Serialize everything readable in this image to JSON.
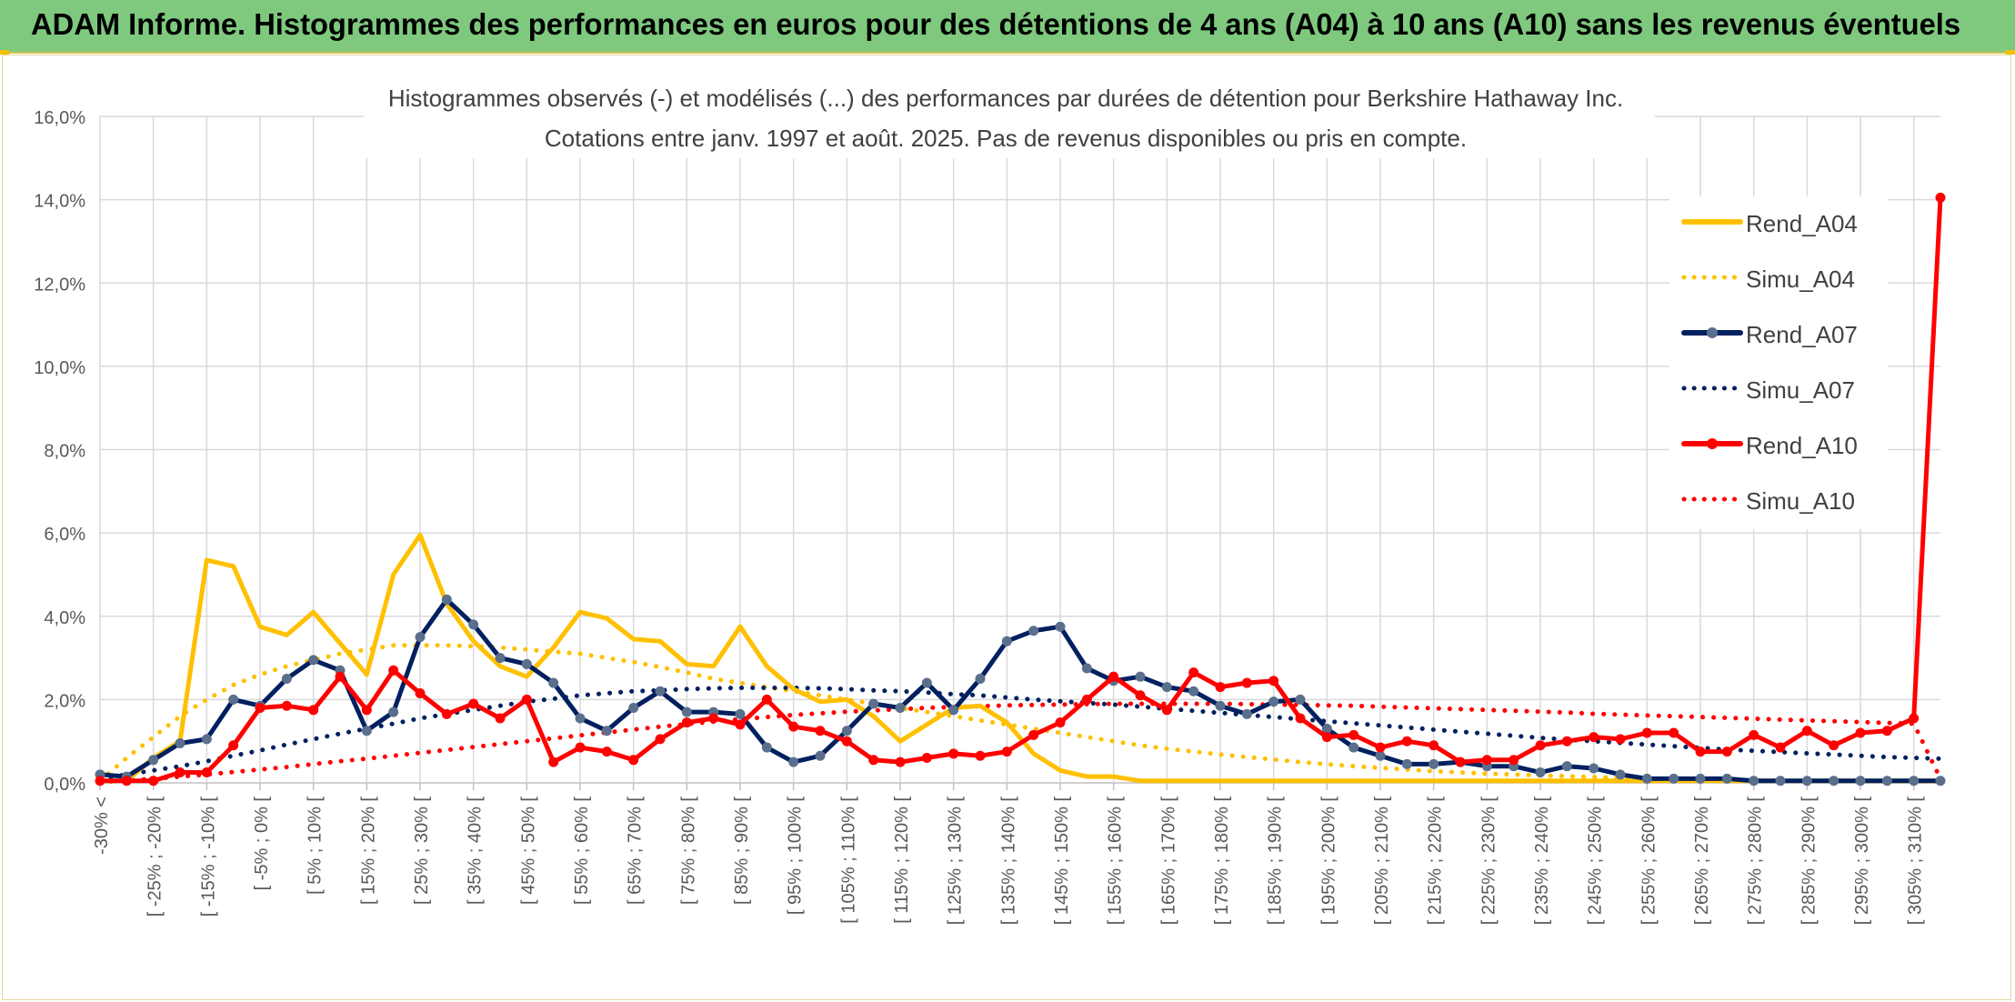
{
  "banner": {
    "title": "ADAM Informe. Histogrammes des performances en euros pour des détentions de 4 ans (A04) à 10 ans (A10) sans les revenus éventuels"
  },
  "colors": {
    "banner_bg": "#7ec97e",
    "A04": "#FFC000",
    "A07": "#002060",
    "A07_marker": "#5a6f8c",
    "A10": "#FF0000"
  },
  "chart_data": {
    "type": "line",
    "title": "Histogrammes observés (-) et modélisés (...) des performances par durées de détention pour Berkshire Hathaway Inc.",
    "subtitle": "Cotations entre janv. 1997 et août. 2025. Pas de revenus disponibles ou pris en compte.",
    "ylim": [
      0,
      16
    ],
    "yticks": [
      "0,0%",
      "2,0%",
      "4,0%",
      "6,0%",
      "8,0%",
      "10,0%",
      "12,0%",
      "14,0%",
      "16,0%"
    ],
    "x_labels": [
      "-30% <",
      "",
      "[ -25% ; -20% [",
      "",
      "[ -15% ; -10% [",
      "",
      "[ -5% ; 0% [",
      "",
      "[ 5% ; 10% [",
      "",
      "[ 15% ; 20% [",
      "",
      "[ 25% ; 30% [",
      "",
      "[ 35% ; 40% [",
      "",
      "[ 45% ; 50% [",
      "",
      "[ 55% ; 60% [",
      "",
      "[ 65% ; 70% [",
      "",
      "[ 75% ; 80% [",
      "",
      "[ 85% ; 90% [",
      "",
      "[ 95% ; 100% [",
      "",
      "[ 105% ; 110% [",
      "",
      "[ 115% ; 120% [",
      "",
      "[ 125% ; 130% [",
      "",
      "[ 135% ; 140% [",
      "",
      "[ 145% ; 150% [",
      "",
      "[ 155% ; 160% [",
      "",
      "[ 165% ; 170% [",
      "",
      "[ 175% ; 180% [",
      "",
      "[ 185% ; 190% [",
      "",
      "[ 195% ; 200% [",
      "",
      "[ 205% ; 210% [",
      "",
      "[ 215% ; 220% [",
      "",
      "[ 225% ; 230% [",
      "",
      "[ 235% ; 240% [",
      "",
      "[ 245% ; 250% [",
      "",
      "[ 255% ; 260% [",
      "",
      "[ 265% ; 270% [",
      "",
      "[ 275% ; 280% [",
      "",
      "[ 285% ; 290% [",
      "",
      "[ 295% ; 300% [",
      "",
      "[ 305% ; 310% [",
      ""
    ],
    "grid": true,
    "legend_position": "right",
    "series": [
      {
        "name": "Rend_A04",
        "style": "solid",
        "marker": false,
        "color": "#FFC000",
        "values": [
          0.05,
          0.05,
          0.6,
          1.0,
          5.35,
          5.2,
          3.75,
          3.55,
          4.1,
          3.35,
          2.6,
          5.0,
          5.95,
          4.3,
          3.4,
          2.8,
          2.55,
          3.25,
          4.1,
          3.95,
          3.45,
          3.4,
          2.85,
          2.8,
          3.75,
          2.8,
          2.25,
          1.95,
          2.0,
          1.6,
          1.0,
          1.4,
          1.8,
          1.85,
          1.45,
          0.7,
          0.3,
          0.15,
          0.15,
          0.05,
          0.05,
          0.05,
          0.05,
          0.05,
          0.05,
          0.05,
          0.05,
          0.05,
          0.05,
          0.05,
          0.05,
          0.05,
          0.05,
          0.05,
          0.05,
          0.05,
          0.05,
          0.05,
          0.05,
          0.05,
          0.05,
          0.05,
          0.05,
          0.05,
          0.05,
          0.05,
          0.05,
          0.05,
          0.05,
          0.05
        ]
      },
      {
        "name": "Simu_A04",
        "style": "dotted",
        "marker": false,
        "color": "#FFC000",
        "values": [
          0.05,
          0.6,
          1.1,
          1.6,
          2.0,
          2.35,
          2.6,
          2.8,
          2.95,
          3.1,
          3.2,
          3.3,
          3.3,
          3.3,
          3.28,
          3.25,
          3.2,
          3.15,
          3.1,
          3.0,
          2.9,
          2.78,
          2.65,
          2.5,
          2.4,
          2.3,
          2.2,
          2.1,
          2.0,
          1.9,
          1.8,
          1.7,
          1.6,
          1.5,
          1.4,
          1.3,
          1.2,
          1.1,
          1.0,
          0.9,
          0.82,
          0.75,
          0.68,
          0.62,
          0.56,
          0.5,
          0.45,
          0.4,
          0.36,
          0.32,
          0.28,
          0.25,
          0.22,
          0.2,
          0.18,
          0.16,
          0.14,
          0.12,
          0.1,
          0.09,
          0.08,
          0.07,
          0.06,
          0.05,
          0.05,
          0.05,
          0.04,
          0.04,
          0.03,
          0.03
        ]
      },
      {
        "name": "Rend_A07",
        "style": "solid",
        "marker": true,
        "color": "#002060",
        "values": [
          0.2,
          0.15,
          0.55,
          0.95,
          1.05,
          2.0,
          1.85,
          2.5,
          2.95,
          2.7,
          1.25,
          1.7,
          3.5,
          4.4,
          3.8,
          3.0,
          2.85,
          2.4,
          1.55,
          1.25,
          1.8,
          2.2,
          1.7,
          1.7,
          1.65,
          0.85,
          0.5,
          0.65,
          1.25,
          1.9,
          1.8,
          2.4,
          1.75,
          2.5,
          3.4,
          3.65,
          3.75,
          2.75,
          2.45,
          2.55,
          2.3,
          2.2,
          1.85,
          1.65,
          1.95,
          2.0,
          1.3,
          0.85,
          0.65,
          0.45,
          0.45,
          0.5,
          0.4,
          0.4,
          0.25,
          0.4,
          0.35,
          0.2,
          0.1,
          0.1,
          0.1,
          0.1,
          0.05,
          0.05,
          0.05,
          0.05,
          0.05,
          0.05,
          0.05,
          0.05
        ]
      },
      {
        "name": "Simu_A07",
        "style": "dotted",
        "marker": false,
        "color": "#002060",
        "values": [
          0.1,
          0.2,
          0.3,
          0.4,
          0.52,
          0.65,
          0.78,
          0.92,
          1.05,
          1.18,
          1.3,
          1.42,
          1.55,
          1.65,
          1.75,
          1.85,
          1.95,
          2.02,
          2.1,
          2.15,
          2.2,
          2.22,
          2.25,
          2.27,
          2.28,
          2.28,
          2.28,
          2.27,
          2.25,
          2.22,
          2.2,
          2.17,
          2.13,
          2.1,
          2.05,
          2.0,
          1.96,
          1.92,
          1.88,
          1.83,
          1.78,
          1.73,
          1.68,
          1.63,
          1.58,
          1.53,
          1.48,
          1.43,
          1.38,
          1.33,
          1.28,
          1.23,
          1.18,
          1.13,
          1.08,
          1.04,
          1.0,
          0.96,
          0.92,
          0.88,
          0.84,
          0.8,
          0.77,
          0.74,
          0.71,
          0.68,
          0.65,
          0.62,
          0.6,
          0.58
        ]
      },
      {
        "name": "Rend_A10",
        "style": "solid",
        "marker": true,
        "color": "#FF0000",
        "values": [
          0.05,
          0.05,
          0.05,
          0.25,
          0.25,
          0.9,
          1.8,
          1.85,
          1.75,
          2.55,
          1.75,
          2.7,
          2.15,
          1.65,
          1.9,
          1.55,
          2.0,
          0.5,
          0.85,
          0.75,
          0.55,
          1.05,
          1.45,
          1.55,
          1.4,
          2.0,
          1.35,
          1.25,
          1.0,
          0.55,
          0.5,
          0.6,
          0.7,
          0.65,
          0.75,
          1.15,
          1.45,
          2.0,
          2.55,
          2.1,
          1.75,
          2.65,
          2.3,
          2.4,
          2.45,
          1.55,
          1.1,
          1.15,
          0.85,
          1.0,
          0.9,
          0.5,
          0.55,
          0.55,
          0.9,
          1.0,
          1.1,
          1.05,
          1.2,
          1.2,
          0.75,
          0.75,
          1.15,
          0.85,
          1.25,
          0.9,
          1.2,
          1.25,
          1.55,
          14.05
        ]
      },
      {
        "name": "Simu_A10",
        "style": "dotted",
        "marker": false,
        "color": "#FF0000",
        "values": [
          0.02,
          0.06,
          0.1,
          0.15,
          0.2,
          0.26,
          0.32,
          0.38,
          0.45,
          0.52,
          0.58,
          0.65,
          0.72,
          0.79,
          0.86,
          0.93,
          1.0,
          1.07,
          1.14,
          1.21,
          1.28,
          1.35,
          1.41,
          1.47,
          1.53,
          1.58,
          1.63,
          1.67,
          1.71,
          1.74,
          1.77,
          1.8,
          1.82,
          1.84,
          1.86,
          1.87,
          1.88,
          1.89,
          1.9,
          1.9,
          1.9,
          1.9,
          1.9,
          1.89,
          1.88,
          1.87,
          1.86,
          1.85,
          1.83,
          1.81,
          1.79,
          1.77,
          1.75,
          1.73,
          1.71,
          1.69,
          1.66,
          1.64,
          1.62,
          1.6,
          1.58,
          1.56,
          1.54,
          1.52,
          1.5,
          1.48,
          1.46,
          1.44,
          1.42,
          0.1
        ]
      }
    ]
  }
}
